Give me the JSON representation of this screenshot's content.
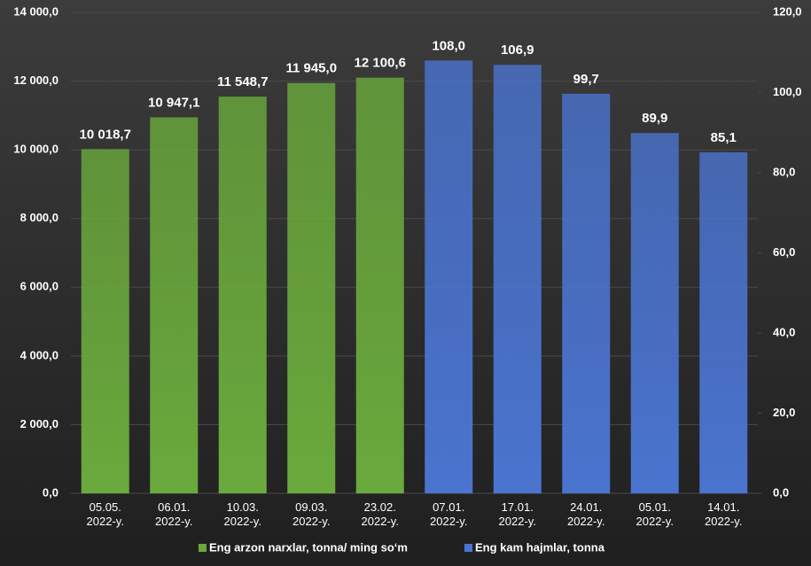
{
  "chart_data": {
    "type": "bar",
    "categories": [
      "05.05. 2022-y.",
      "06.01. 2022-y.",
      "10.03. 2022-y.",
      "09.03. 2022-y.",
      "23.02. 2022-y.",
      "07.01. 2022-y.",
      "17.01. 2022-y.",
      "24.01. 2022-y.",
      "05.01. 2022-y.",
      "14.01. 2022-y."
    ],
    "series": [
      {
        "name": "Eng arzon narxlar, tonna/ ming so‘m",
        "color": "#6aaa3c",
        "values": [
          10018.7,
          10947.1,
          11548.7,
          11945.0,
          12100.6,
          null,
          null,
          null,
          null,
          null
        ],
        "value_labels": [
          "10 018,7",
          "10 947,1",
          "11 548,7",
          "11 945,0",
          "12 100,6",
          null,
          null,
          null,
          null,
          null
        ]
      },
      {
        "name": "Eng kam hajmlar, tonna",
        "color": "#4a74cf",
        "axis": "y2",
        "values": [
          null,
          null,
          null,
          null,
          null,
          108.0,
          106.9,
          99.7,
          89.9,
          85.1
        ],
        "value_labels": [
          null,
          null,
          null,
          null,
          null,
          "108,0",
          "106,9",
          "99,7",
          "89,9",
          "85,1"
        ]
      }
    ],
    "ylim": [
      0,
      14000
    ],
    "yticks": [
      {
        "value": 0,
        "label": "0,0"
      },
      {
        "value": 2000,
        "label": "2 000,0"
      },
      {
        "value": 4000,
        "label": "4 000,0"
      },
      {
        "value": 6000,
        "label": "6 000,0"
      },
      {
        "value": 8000,
        "label": "8 000,0"
      },
      {
        "value": 10000,
        "label": "10 000,0"
      },
      {
        "value": 12000,
        "label": "12 000,0"
      },
      {
        "value": 14000,
        "label": "14 000,0"
      }
    ],
    "y2lim": [
      0,
      120
    ],
    "y2ticks": [
      {
        "value": 0,
        "label": "0,0"
      },
      {
        "value": 20,
        "label": "20,0"
      },
      {
        "value": 40,
        "label": "40,0"
      },
      {
        "value": 60,
        "label": "60,0"
      },
      {
        "value": 80,
        "label": "80,0"
      },
      {
        "value": 100,
        "label": "100,0"
      },
      {
        "value": 120,
        "label": "120,0"
      }
    ],
    "grid": true,
    "legend": "bottom"
  }
}
